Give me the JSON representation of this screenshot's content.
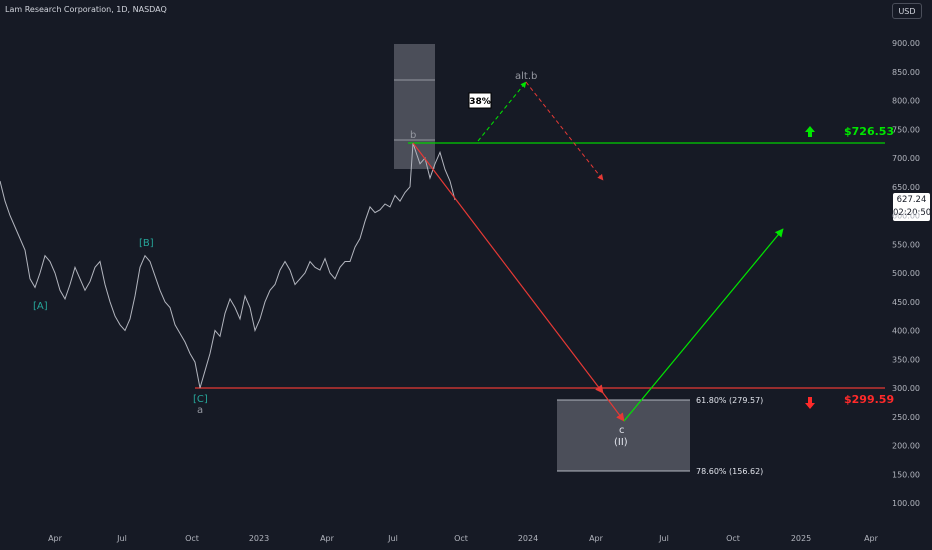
{
  "header": {
    "title": "Lam Research Corporation, 1D, NASDAQ",
    "currency": "USD"
  },
  "current_price": {
    "price": "627.24",
    "countdown": "02:20:50"
  },
  "chart_data": {
    "type": "line",
    "title": "Lam Research Corporation, 1D, NASDAQ",
    "xlabel": "",
    "ylabel": "",
    "ylim": [
      85,
      935
    ],
    "y_ticks": [
      "900.00",
      "850.00",
      "800.00",
      "750.00",
      "700.00",
      "650.00",
      "600.00",
      "550.00",
      "500.00",
      "450.00",
      "400.00",
      "350.00",
      "300.00",
      "250.00",
      "200.00",
      "150.00",
      "100.00"
    ],
    "x_ticks": [
      "Apr",
      "Jul",
      "Oct",
      "2023",
      "Apr",
      "Jul",
      "Oct",
      "2024",
      "Apr",
      "Jul",
      "Oct",
      "2025",
      "Apr"
    ],
    "series": [
      {
        "values": [
          [
            0,
            660
          ],
          [
            5,
            625
          ],
          [
            10,
            600
          ],
          [
            15,
            580
          ],
          [
            20,
            560
          ],
          [
            25,
            540
          ],
          [
            30,
            490
          ],
          [
            35,
            475
          ],
          [
            40,
            500
          ],
          [
            45,
            530
          ],
          [
            50,
            520
          ],
          [
            55,
            500
          ],
          [
            60,
            470
          ],
          [
            65,
            455
          ],
          [
            70,
            480
          ],
          [
            75,
            510
          ],
          [
            80,
            490
          ],
          [
            85,
            470
          ],
          [
            90,
            485
          ],
          [
            95,
            510
          ],
          [
            100,
            520
          ],
          [
            105,
            480
          ],
          [
            110,
            450
          ],
          [
            115,
            425
          ],
          [
            120,
            410
          ],
          [
            125,
            400
          ],
          [
            130,
            420
          ],
          [
            135,
            460
          ],
          [
            140,
            510
          ],
          [
            145,
            530
          ],
          [
            150,
            520
          ],
          [
            155,
            495
          ],
          [
            160,
            470
          ],
          [
            165,
            450
          ],
          [
            170,
            440
          ],
          [
            175,
            410
          ],
          [
            180,
            395
          ],
          [
            185,
            380
          ],
          [
            190,
            360
          ],
          [
            195,
            345
          ],
          [
            200,
            300
          ],
          [
            205,
            330
          ],
          [
            210,
            360
          ],
          [
            215,
            400
          ],
          [
            220,
            390
          ],
          [
            225,
            430
          ],
          [
            230,
            455
          ],
          [
            235,
            440
          ],
          [
            240,
            420
          ],
          [
            245,
            460
          ],
          [
            250,
            440
          ],
          [
            255,
            400
          ],
          [
            260,
            420
          ],
          [
            265,
            450
          ],
          [
            270,
            470
          ],
          [
            275,
            480
          ],
          [
            280,
            505
          ],
          [
            285,
            520
          ],
          [
            290,
            505
          ],
          [
            295,
            480
          ],
          [
            300,
            490
          ],
          [
            305,
            500
          ],
          [
            310,
            520
          ],
          [
            315,
            510
          ],
          [
            320,
            505
          ],
          [
            325,
            525
          ],
          [
            330,
            500
          ],
          [
            335,
            490
          ],
          [
            340,
            510
          ],
          [
            345,
            520
          ],
          [
            350,
            520
          ],
          [
            355,
            545
          ],
          [
            360,
            560
          ],
          [
            365,
            590
          ],
          [
            370,
            615
          ],
          [
            375,
            605
          ],
          [
            380,
            610
          ],
          [
            385,
            620
          ],
          [
            390,
            615
          ],
          [
            395,
            635
          ],
          [
            400,
            625
          ],
          [
            405,
            640
          ],
          [
            410,
            650
          ],
          [
            413,
            726
          ],
          [
            417,
            705
          ],
          [
            420,
            690
          ],
          [
            425,
            700
          ],
          [
            430,
            665
          ],
          [
            435,
            690
          ],
          [
            440,
            710
          ],
          [
            445,
            680
          ],
          [
            450,
            660
          ],
          [
            455,
            627
          ]
        ]
      }
    ],
    "levels": [
      {
        "label": "$726.53",
        "value": 726.53,
        "color": "#00e600"
      },
      {
        "label": "$299.59",
        "value": 299.59,
        "color": "#ff2a2a"
      }
    ],
    "fib_levels": [
      {
        "label": "61.80% (279.57)",
        "value": 279.57
      },
      {
        "label": "78.60% (156.62)",
        "value": 156.62
      }
    ],
    "wave_labels": [
      "[A]",
      "[B]",
      "[C]",
      "a",
      "b",
      "c",
      "(II)",
      "alt.b"
    ],
    "probability_label": "38%"
  }
}
